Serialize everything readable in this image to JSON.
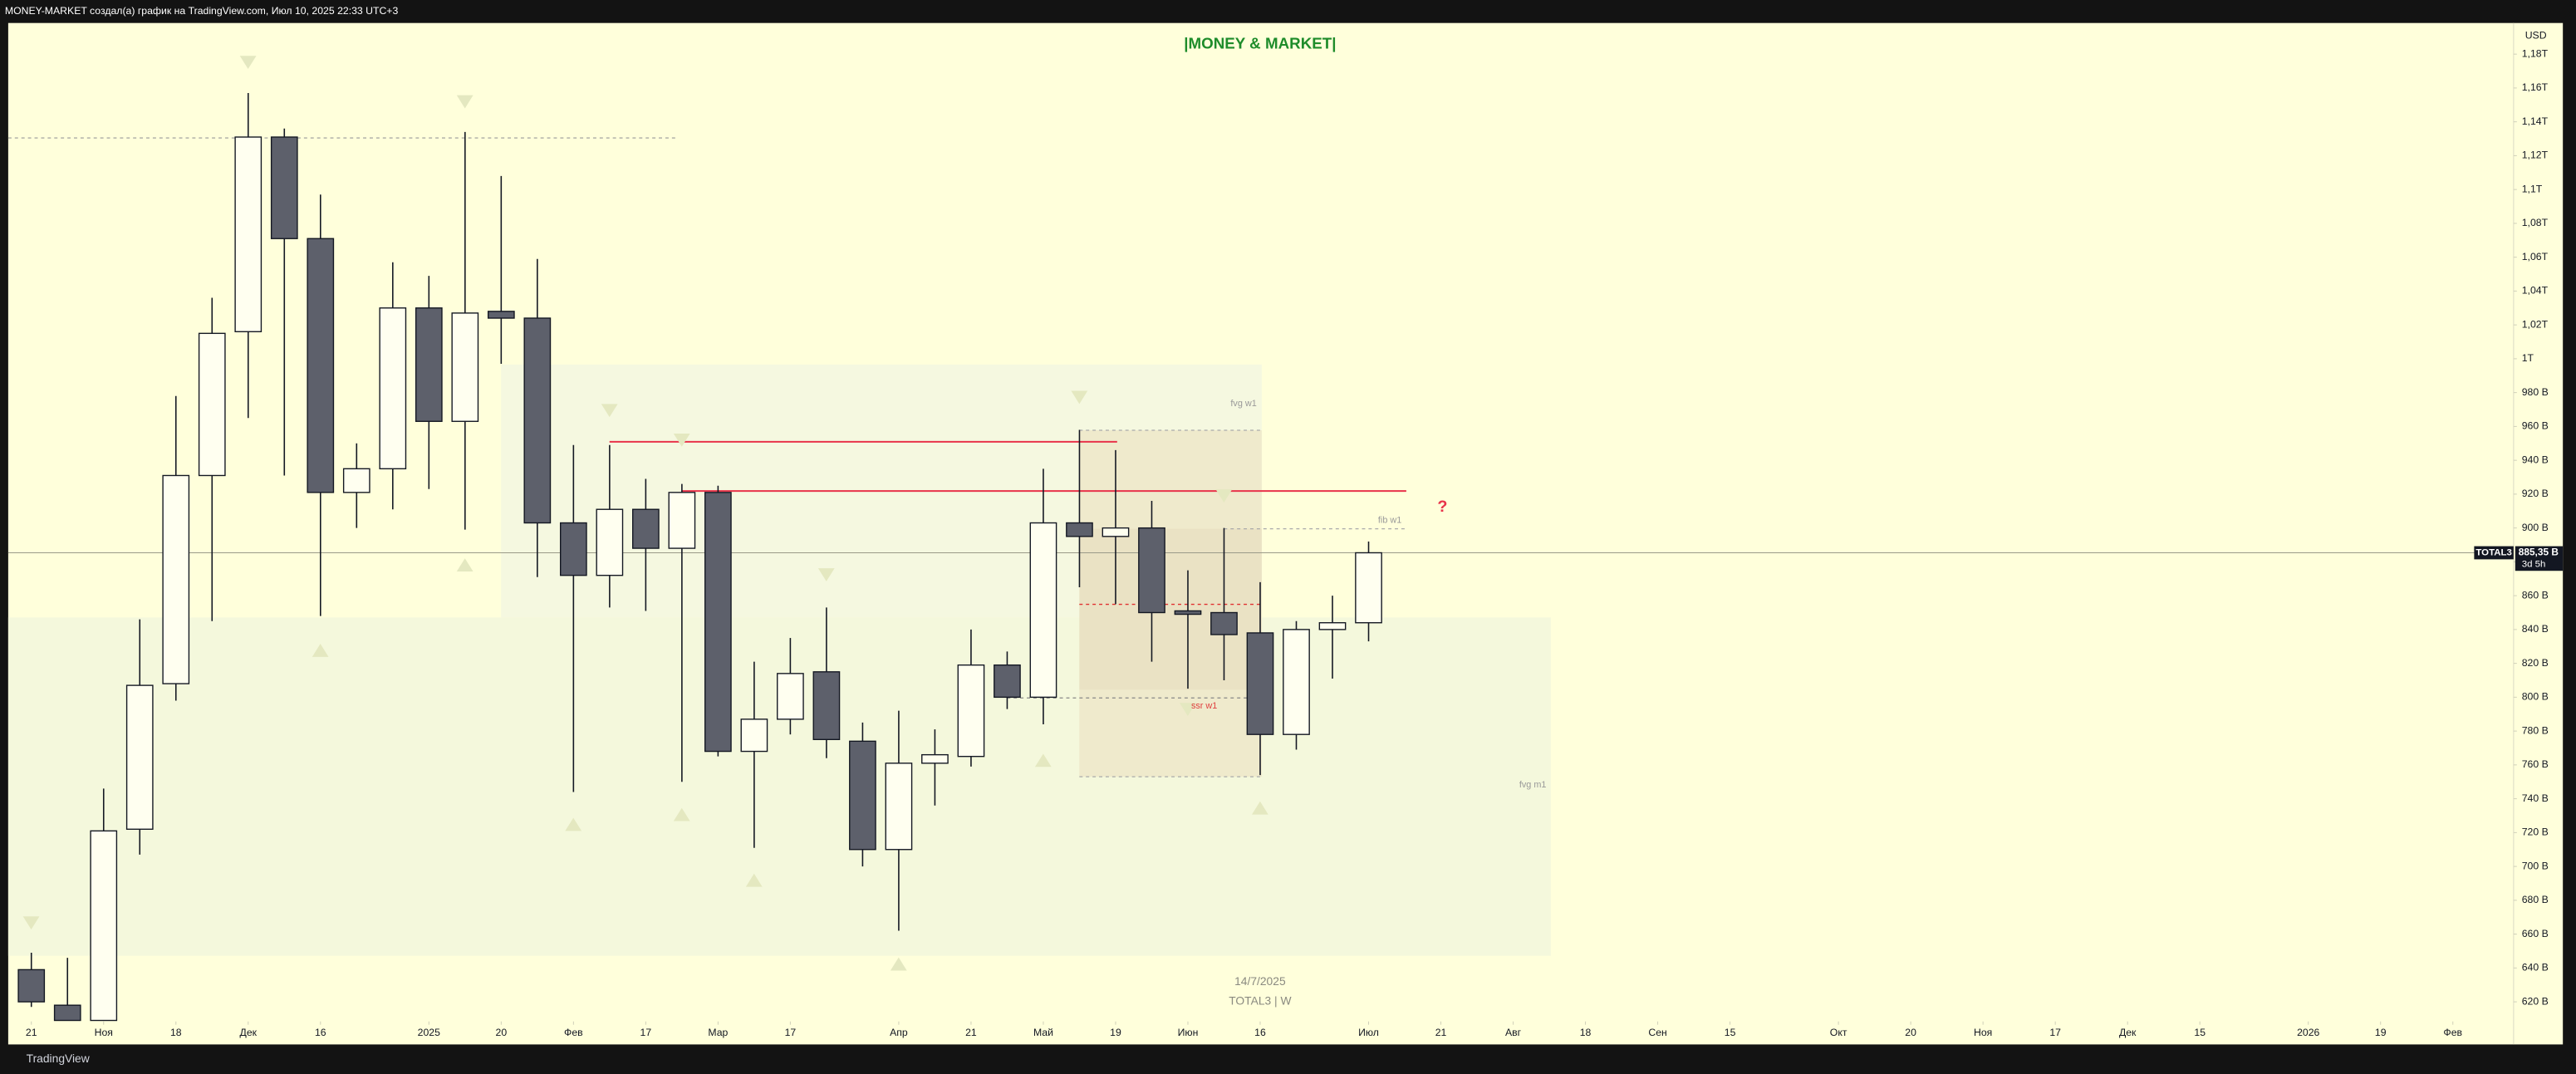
{
  "header": "MONEY-MARKET создал(а) график на TradingView.com, Июл 10, 2025 22:33 UTC+3",
  "footer": "TradingView",
  "chart_data": {
    "type": "candlestick",
    "title": "|MONEY & MARKET|",
    "currency": "USD",
    "symbol": "TOTAL3",
    "countdown": "3d 5h",
    "watermark": [
      "14/7/2025",
      "TOTAL3 | W"
    ],
    "annotations": [
      "fvg w1",
      "fib w1",
      "ssr w1",
      "fvg m1",
      "?"
    ],
    "up_color": "#fffff0",
    "down_color": "#5d606b",
    "wick_color": "#131722",
    "x": [
      0,
      1,
      2,
      3,
      4,
      5,
      6,
      7,
      8,
      9,
      10,
      11,
      12,
      13,
      14,
      15,
      16,
      17,
      18,
      19,
      20,
      21,
      22,
      23,
      24,
      25,
      26,
      27,
      28,
      29,
      30,
      31,
      32,
      33,
      34,
      35,
      36,
      37
    ],
    "open": [
      639,
      618,
      609,
      722,
      808,
      931,
      1016,
      1131,
      1071,
      921,
      935,
      1030,
      963,
      1028,
      1024,
      903,
      872,
      911,
      888,
      921,
      768,
      787,
      815,
      774,
      710,
      761,
      765,
      819,
      800,
      903,
      895,
      900,
      851,
      850,
      838,
      778,
      840,
      844
    ],
    "high": [
      649,
      646,
      746,
      846,
      978,
      1036,
      1157,
      1136,
      1097,
      950,
      1057,
      1049,
      1134,
      1108,
      1059,
      949,
      949,
      929,
      926,
      925,
      821,
      835,
      853,
      785,
      792,
      781,
      840,
      827,
      935,
      958,
      946,
      916,
      875,
      900,
      868,
      845,
      860,
      892
    ],
    "low": [
      617,
      609,
      609,
      707,
      798,
      845,
      965,
      931,
      848,
      900,
      911,
      923,
      899,
      997,
      871,
      744,
      853,
      851,
      750,
      765,
      711,
      778,
      764,
      700,
      662,
      736,
      759,
      793,
      784,
      865,
      855,
      821,
      805,
      810,
      754,
      769,
      811,
      833
    ],
    "close": [
      620,
      609,
      721,
      807,
      931,
      1015,
      1131,
      1071,
      921,
      935,
      1030,
      963,
      1027,
      1024,
      903,
      872,
      911,
      888,
      921,
      768,
      787,
      814,
      775,
      710,
      761,
      766,
      819,
      800,
      903,
      895,
      900,
      850,
      849,
      837,
      778,
      840,
      844,
      885.35
    ],
    "last_price": {
      "value": 885.35,
      "label": "885,35 B"
    },
    "grid": false,
    "xlim": [
      -0.64,
      68.68
    ],
    "xticks": [
      {
        "value": 0,
        "label": "21"
      },
      {
        "value": 2,
        "label": "Ноя"
      },
      {
        "value": 4,
        "label": "18"
      },
      {
        "value": 6,
        "label": "Дек"
      },
      {
        "value": 8,
        "label": "16"
      },
      {
        "value": 11,
        "label": "2025"
      },
      {
        "value": 13,
        "label": "20"
      },
      {
        "value": 15,
        "label": "Фев"
      },
      {
        "value": 17,
        "label": "17"
      },
      {
        "value": 19,
        "label": "Мар"
      },
      {
        "value": 21,
        "label": "17"
      },
      {
        "value": 24,
        "label": "Апр"
      },
      {
        "value": 26,
        "label": "21"
      },
      {
        "value": 28,
        "label": "Май"
      },
      {
        "value": 30,
        "label": "19"
      },
      {
        "value": 32,
        "label": "Июн"
      },
      {
        "value": 34,
        "label": "16"
      },
      {
        "value": 37,
        "label": "Июл"
      },
      {
        "value": 39,
        "label": "21"
      },
      {
        "value": 41,
        "label": "Авг"
      },
      {
        "value": 43,
        "label": "18"
      },
      {
        "value": 45,
        "label": "Сен"
      },
      {
        "value": 47,
        "label": "15"
      },
      {
        "value": 50,
        "label": "Окт"
      },
      {
        "value": 52,
        "label": "20"
      },
      {
        "value": 54,
        "label": "Ноя"
      },
      {
        "value": 56,
        "label": "17"
      },
      {
        "value": 58,
        "label": "Дек"
      },
      {
        "value": 60,
        "label": "15"
      },
      {
        "value": 63,
        "label": "2026"
      },
      {
        "value": 65,
        "label": "19"
      },
      {
        "value": 67,
        "label": "Фев"
      }
    ],
    "ylim": [
      608.4,
      1198.4
    ],
    "yticks": [
      {
        "value": 620,
        "label": "620 B"
      },
      {
        "value": 640,
        "label": "640 B"
      },
      {
        "value": 660,
        "label": "660 B"
      },
      {
        "value": 680,
        "label": "680 B"
      },
      {
        "value": 700,
        "label": "700 B"
      },
      {
        "value": 720,
        "label": "720 B"
      },
      {
        "value": 740,
        "label": "740 B"
      },
      {
        "value": 760,
        "label": "760 B"
      },
      {
        "value": 780,
        "label": "780 B"
      },
      {
        "value": 800,
        "label": "800 B"
      },
      {
        "value": 820,
        "label": "820 B"
      },
      {
        "value": 840,
        "label": "840 B"
      },
      {
        "value": 860,
        "label": "860 B"
      },
      {
        "value": 880,
        "label": "880 B"
      },
      {
        "value": 900,
        "label": "900 B"
      },
      {
        "value": 920,
        "label": "920 B"
      },
      {
        "value": 940,
        "label": "940 B"
      },
      {
        "value": 960,
        "label": "960 B"
      },
      {
        "value": 980,
        "label": "980 B"
      },
      {
        "value": 1000,
        "label": "1T"
      },
      {
        "value": 1020,
        "label": "1,02T"
      },
      {
        "value": 1040,
        "label": "1,04T"
      },
      {
        "value": 1060,
        "label": "1,06T"
      },
      {
        "value": 1080,
        "label": "1,08T"
      },
      {
        "value": 1100,
        "label": "1,1T"
      },
      {
        "value": 1120,
        "label": "1,12T"
      },
      {
        "value": 1140,
        "label": "1,14T"
      },
      {
        "value": 1160,
        "label": "1,16T"
      },
      {
        "value": 1180,
        "label": "1,18T"
      }
    ]
  }
}
